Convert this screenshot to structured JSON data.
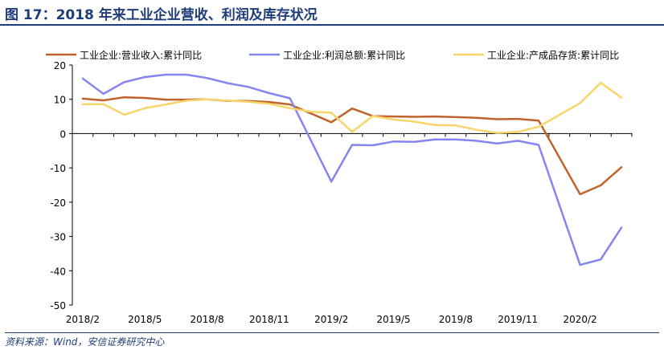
{
  "title": "图 17：2018 年来工业企业营收、利润及库存状况",
  "source": "资料来源：Wind，安信证券研究中心",
  "chart_data": {
    "type": "line",
    "x_tick_labels": [
      "2018/2",
      "2018/5",
      "2018/8",
      "2018/11",
      "2019/2",
      "2019/5",
      "2019/8",
      "2019/11",
      "2020/2"
    ],
    "x_tick_index": [
      0,
      3,
      6,
      9,
      12,
      15,
      18,
      21,
      24
    ],
    "x": [
      "2018/2",
      "2018/3",
      "2018/4",
      "2018/5",
      "2018/6",
      "2018/7",
      "2018/8",
      "2018/9",
      "2018/10",
      "2018/11",
      "2018/12",
      "2019/1",
      "2019/2",
      "2019/3",
      "2019/4",
      "2019/5",
      "2019/6",
      "2019/7",
      "2019/8",
      "2019/9",
      "2019/10",
      "2019/11",
      "2019/12",
      "2020/1",
      "2020/2",
      "2020/3",
      "2020/4"
    ],
    "ylim": [
      -50,
      20
    ],
    "y_ticks": [
      20,
      10,
      0,
      -10,
      -20,
      -30,
      -40,
      -50
    ],
    "legend_position": "top",
    "series": [
      {
        "name": "工业企业:营业收入:累计同比",
        "color": "#c0622b",
        "values": [
          10.2,
          9.7,
          10.6,
          10.4,
          9.9,
          9.9,
          10.0,
          9.5,
          9.5,
          9.2,
          8.5,
          null,
          3.3,
          7.3,
          5.1,
          5.0,
          4.9,
          5.0,
          4.8,
          4.6,
          4.2,
          4.3,
          3.8,
          null,
          -17.7,
          -15.1,
          -9.8
        ],
        "missing_bridged": true
      },
      {
        "name": "工业企业:利润总额:累计同比",
        "color": "#8585f0",
        "values": [
          16.1,
          11.6,
          15.0,
          16.5,
          17.2,
          17.2,
          16.2,
          14.7,
          13.6,
          11.8,
          10.3,
          null,
          -14.0,
          -3.3,
          -3.4,
          -2.3,
          -2.4,
          -1.7,
          -1.7,
          -2.1,
          -2.9,
          -2.1,
          -3.3,
          null,
          -38.3,
          -36.7,
          -27.4
        ],
        "missing_bridged": true
      },
      {
        "name": "工业企业:产成品存货:累计同比",
        "color": "#f7d56a",
        "values": [
          8.6,
          8.6,
          5.5,
          7.4,
          8.5,
          9.6,
          10.0,
          9.6,
          9.3,
          8.7,
          7.4,
          6.4,
          6.1,
          0.5,
          5.1,
          4.1,
          3.5,
          2.5,
          2.4,
          1.1,
          0.2,
          0.5,
          2.0,
          null,
          8.9,
          14.8,
          10.5
        ],
        "missing_bridged": true
      }
    ]
  }
}
